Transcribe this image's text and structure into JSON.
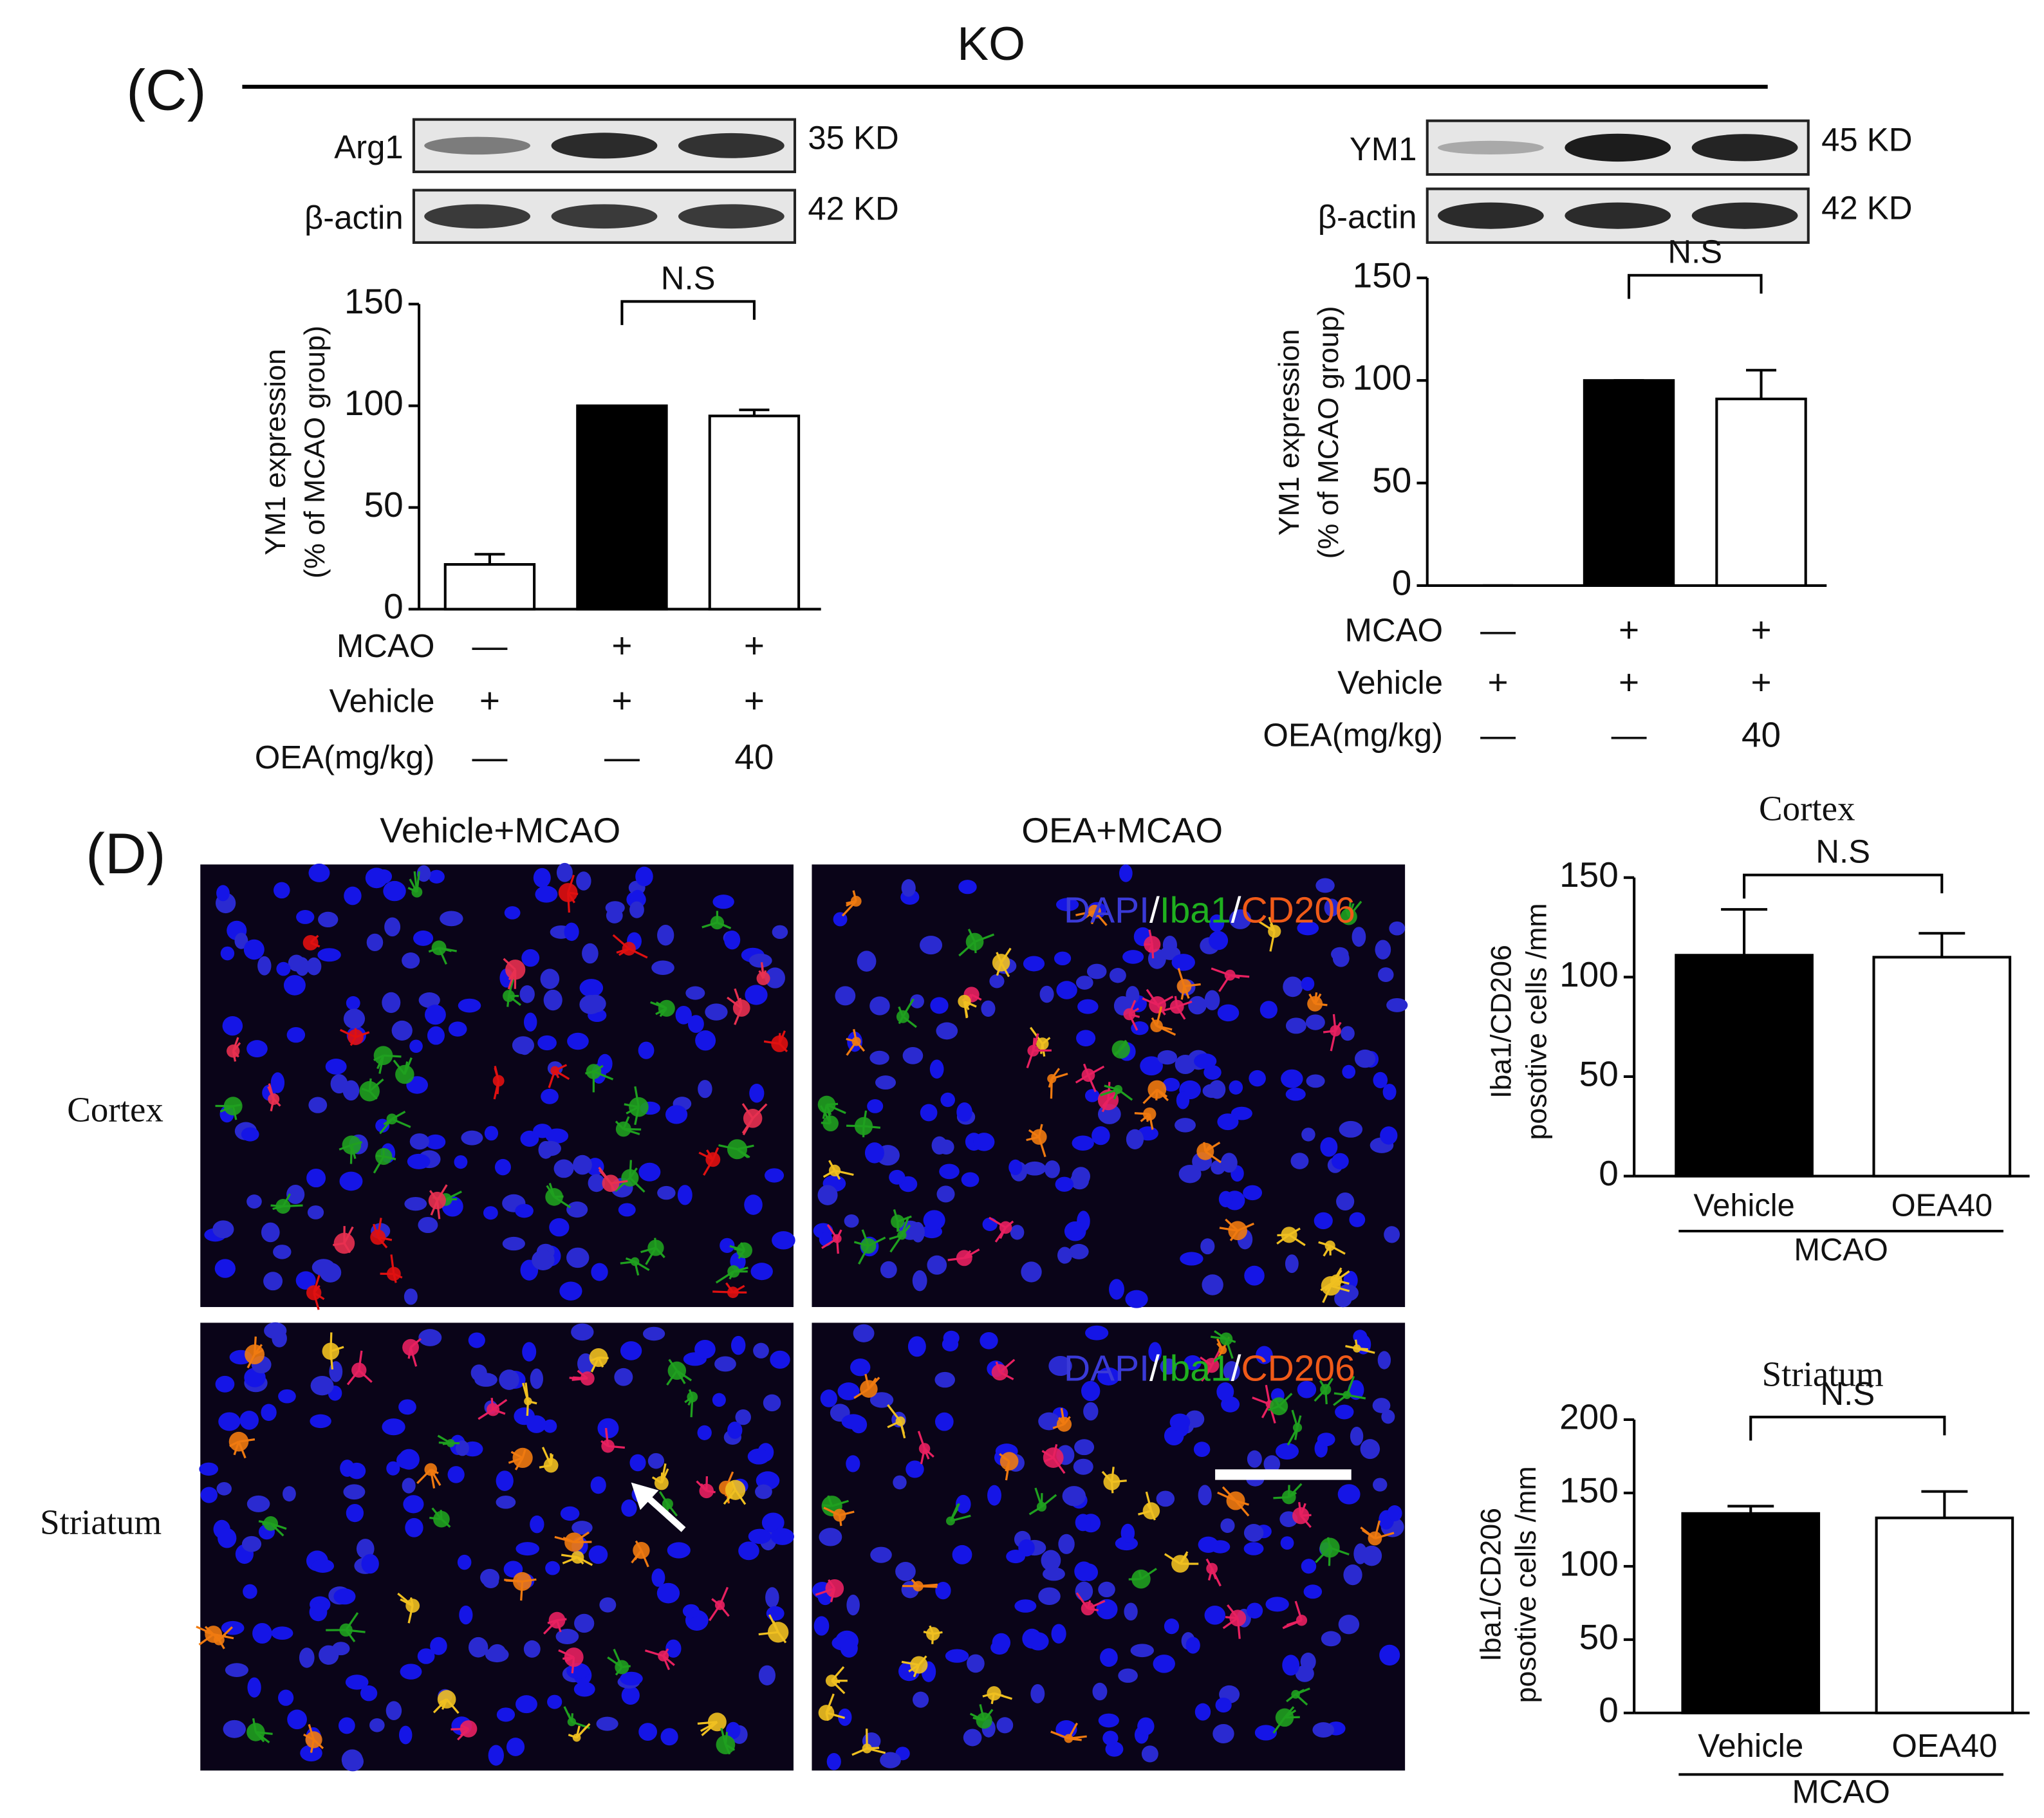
{
  "panel_c": {
    "label": "(C)",
    "header": "KO",
    "blots_left": [
      {
        "protein": "Arg1",
        "size": "35 KD"
      },
      {
        "protein": "β-actin",
        "size": "42 KD"
      }
    ],
    "blots_right": [
      {
        "protein": "YM1",
        "size": "45 KD"
      },
      {
        "protein": "β-actin",
        "size": "42 KD"
      }
    ]
  },
  "panel_d": {
    "label": "(D)",
    "columns": [
      "Vehicle+MCAO",
      "OEA+MCAO"
    ],
    "rows": [
      "Cortex",
      "Striatum"
    ],
    "stain_label": [
      "DAPI",
      "/",
      "Iba1",
      "/",
      "CD206"
    ]
  },
  "chart_data": [
    {
      "type": "bar",
      "y_label": [
        "YM1 expression",
        "(% of MCAO group)"
      ],
      "values": [
        22,
        100,
        95
      ],
      "errors": [
        5,
        0,
        3
      ],
      "colors": [
        "#ffffff",
        "#000000",
        "#ffffff"
      ],
      "ylim": [
        0,
        150
      ],
      "yticks": [
        0,
        50,
        100,
        150
      ],
      "annotation": "N.S",
      "conditions": [
        {
          "label": "MCAO",
          "values": [
            "—",
            "+",
            "+"
          ]
        },
        {
          "label": "Vehicle",
          "values": [
            "+",
            "+",
            "+"
          ]
        },
        {
          "label": "OEA(mg/kg)",
          "values": [
            "—",
            "—",
            "40"
          ]
        }
      ]
    },
    {
      "type": "bar",
      "y_label": [
        "YM1 expression",
        "(% of MCAO group)"
      ],
      "values": [
        0,
        100,
        91
      ],
      "errors": [
        0,
        0,
        14
      ],
      "colors": [
        "#ffffff",
        "#000000",
        "#ffffff"
      ],
      "ylim": [
        0,
        150
      ],
      "yticks": [
        0,
        50,
        100,
        150
      ],
      "annotation": "N.S",
      "conditions": [
        {
          "label": "MCAO",
          "values": [
            "—",
            "+",
            "+"
          ]
        },
        {
          "label": "Vehicle",
          "values": [
            "+",
            "+",
            "+"
          ]
        },
        {
          "label": "OEA(mg/kg)",
          "values": [
            "—",
            "—",
            "40"
          ]
        }
      ]
    },
    {
      "type": "bar",
      "title": "Cortex",
      "y_label": [
        "Iba1/CD206",
        "posotive cells /mm"
      ],
      "categories": [
        "Vehicle",
        "OEA40"
      ],
      "group_label": "MCAO",
      "values": [
        111,
        110
      ],
      "errors": [
        23,
        12
      ],
      "colors": [
        "#000000",
        "#ffffff"
      ],
      "ylim": [
        0,
        150
      ],
      "yticks": [
        0,
        50,
        100,
        150
      ],
      "annotation": "N.S"
    },
    {
      "type": "bar",
      "title": "Striatum",
      "y_label": [
        "Iba1/CD206",
        "posotive cells /mm"
      ],
      "categories": [
        "Vehicle",
        "OEA40"
      ],
      "group_label": "MCAO",
      "values": [
        136,
        133
      ],
      "errors": [
        5,
        18
      ],
      "colors": [
        "#000000",
        "#ffffff"
      ],
      "ylim": [
        0,
        200
      ],
      "yticks": [
        0,
        50,
        100,
        150,
        200
      ],
      "annotation": "N.S"
    }
  ]
}
